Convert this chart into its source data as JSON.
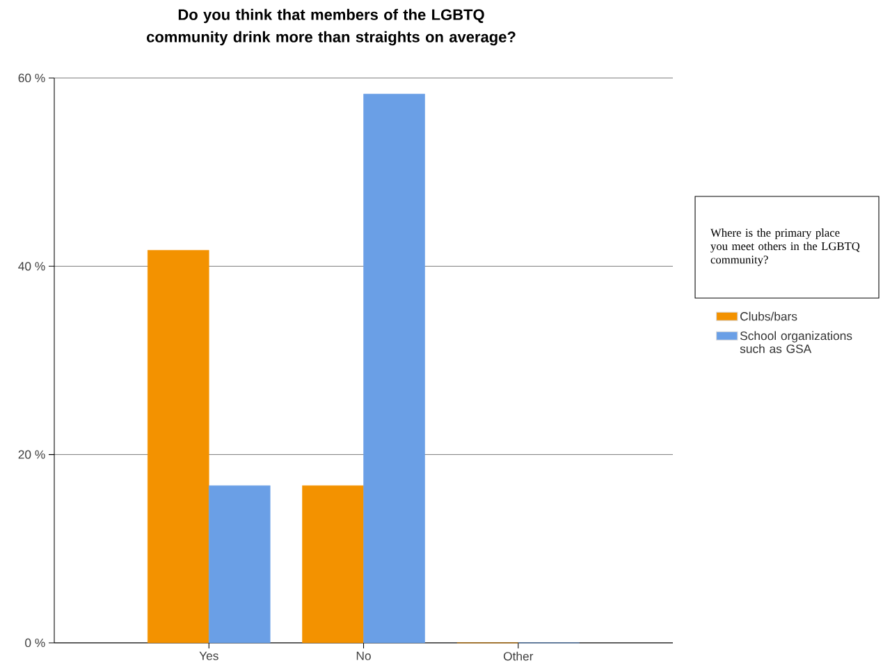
{
  "chart_data": {
    "type": "bar",
    "title": "Do you think that members of the LGBTQ community drink more than straights on average?",
    "legend_title": "Where is the primary place you meet others in the LGBTQ community?",
    "categories": [
      "Yes",
      "No",
      "Other"
    ],
    "series": [
      {
        "name": "Clubs/bars",
        "color": "#f39200",
        "values": [
          41.7,
          16.7,
          0
        ]
      },
      {
        "name": "School organizations such as GSA",
        "color": "#6a9fe6",
        "values": [
          16.7,
          58.3,
          0
        ]
      }
    ],
    "ylim": [
      0,
      60
    ],
    "yticks": [
      {
        "value": 0,
        "label": "0 %"
      },
      {
        "value": 20,
        "label": "20 %"
      },
      {
        "value": 40,
        "label": "40 %"
      },
      {
        "value": 60,
        "label": "60 %"
      }
    ],
    "grid": "y",
    "legend": "right"
  }
}
